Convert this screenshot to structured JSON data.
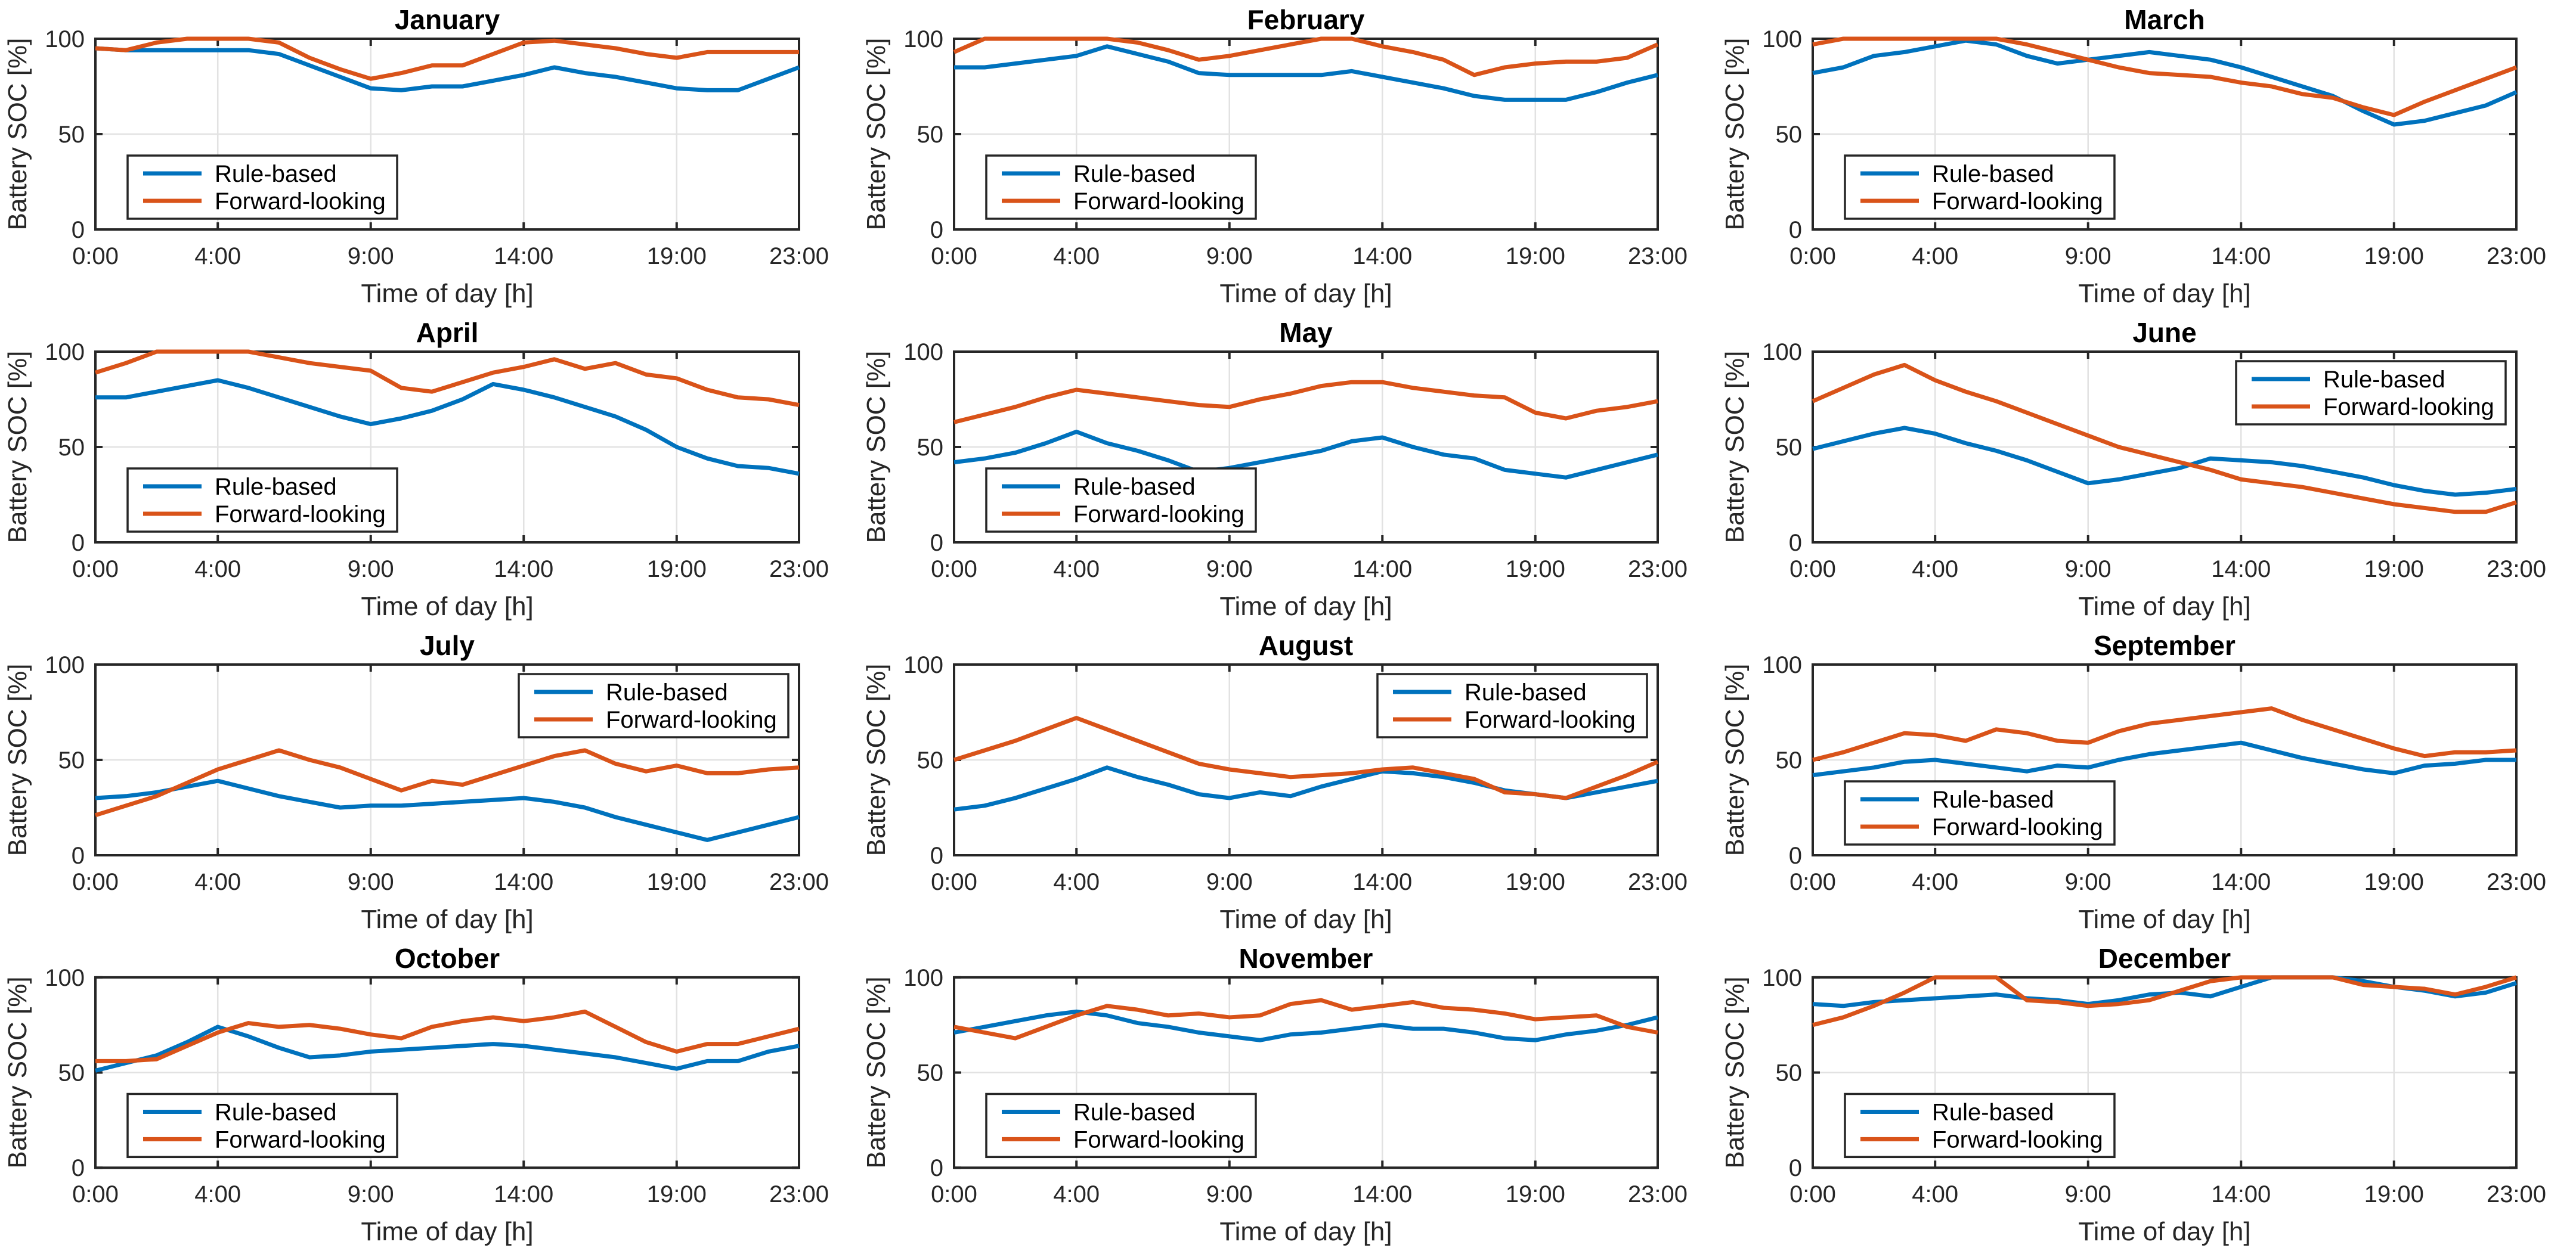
{
  "page": {
    "background": "#ffffff"
  },
  "colors": {
    "rule_based": "#0072BD",
    "forward_looking": "#D95319",
    "axis": "#262626",
    "grid": "#E2E2E2",
    "title_text": "#000000",
    "tick_text": "#262626",
    "legend_bg": "#ffffff"
  },
  "chart_defaults": {
    "type": "line",
    "xlabel": "Time of day [h]",
    "ylabel": "Battery SOC [%]",
    "xlim": [
      0,
      23
    ],
    "ylim": [
      0,
      100
    ],
    "grid": true,
    "x_hours": [
      0,
      1,
      2,
      3,
      4,
      5,
      6,
      7,
      8,
      9,
      10,
      11,
      12,
      13,
      14,
      15,
      16,
      17,
      18,
      19,
      20,
      21,
      22,
      23
    ],
    "x_ticks": [
      0,
      4,
      9,
      14,
      19,
      23
    ],
    "x_tick_labels": [
      "0:00",
      "4:00",
      "9:00",
      "14:00",
      "19:00",
      "23:00"
    ],
    "y_ticks": [
      0,
      50,
      100
    ],
    "y_tick_labels": [
      "0",
      "50",
      "100"
    ],
    "legend_labels": [
      "Rule-based",
      "Forward-looking"
    ]
  },
  "chart_data": [
    {
      "type": "line",
      "title": "January",
      "legend_pos": "southwest",
      "series": [
        {
          "name": "Rule-based",
          "values": [
            95,
            94,
            94,
            94,
            94,
            94,
            92,
            86,
            80,
            74,
            73,
            75,
            75,
            78,
            81,
            85,
            82,
            80,
            77,
            74,
            73,
            73,
            79,
            85
          ]
        },
        {
          "name": "Forward-looking",
          "values": [
            95,
            94,
            98,
            100,
            100,
            100,
            98,
            90,
            84,
            79,
            82,
            86,
            86,
            92,
            98,
            99,
            97,
            95,
            92,
            90,
            93,
            93,
            93,
            93
          ]
        }
      ]
    },
    {
      "type": "line",
      "title": "February",
      "legend_pos": "southwest",
      "series": [
        {
          "name": "Rule-based",
          "values": [
            85,
            85,
            87,
            89,
            91,
            96,
            92,
            88,
            82,
            81,
            81,
            81,
            81,
            83,
            80,
            77,
            74,
            70,
            68,
            68,
            68,
            72,
            77,
            81
          ]
        },
        {
          "name": "Forward-looking",
          "values": [
            93,
            100,
            100,
            100,
            100,
            100,
            98,
            94,
            89,
            91,
            94,
            97,
            100,
            100,
            96,
            93,
            89,
            81,
            85,
            87,
            88,
            88,
            90,
            97
          ]
        }
      ]
    },
    {
      "type": "line",
      "title": "March",
      "legend_pos": "southwest",
      "series": [
        {
          "name": "Rule-based",
          "values": [
            82,
            85,
            91,
            93,
            96,
            99,
            97,
            91,
            87,
            89,
            91,
            93,
            91,
            89,
            85,
            80,
            75,
            70,
            62,
            55,
            57,
            61,
            65,
            72
          ]
        },
        {
          "name": "Forward-looking",
          "values": [
            97,
            100,
            100,
            100,
            100,
            100,
            100,
            97,
            93,
            89,
            85,
            82,
            81,
            80,
            77,
            75,
            71,
            69,
            64,
            60,
            67,
            73,
            79,
            85
          ]
        }
      ]
    },
    {
      "type": "line",
      "title": "April",
      "legend_pos": "southwest",
      "series": [
        {
          "name": "Rule-based",
          "values": [
            76,
            76,
            79,
            82,
            85,
            81,
            76,
            71,
            66,
            62,
            65,
            69,
            75,
            83,
            80,
            76,
            71,
            66,
            59,
            50,
            44,
            40,
            39,
            36
          ]
        },
        {
          "name": "Forward-looking",
          "values": [
            89,
            94,
            100,
            100,
            100,
            100,
            97,
            94,
            92,
            90,
            81,
            79,
            84,
            89,
            92,
            96,
            91,
            94,
            88,
            86,
            80,
            76,
            75,
            72
          ]
        }
      ]
    },
    {
      "type": "line",
      "title": "May",
      "legend_pos": "southwest",
      "series": [
        {
          "name": "Rule-based",
          "values": [
            42,
            44,
            47,
            52,
            58,
            52,
            48,
            43,
            37,
            39,
            42,
            45,
            48,
            53,
            55,
            50,
            46,
            44,
            38,
            36,
            34,
            38,
            42,
            46
          ]
        },
        {
          "name": "Forward-looking",
          "values": [
            63,
            67,
            71,
            76,
            80,
            78,
            76,
            74,
            72,
            71,
            75,
            78,
            82,
            84,
            84,
            81,
            79,
            77,
            76,
            68,
            65,
            69,
            71,
            74
          ]
        }
      ]
    },
    {
      "type": "line",
      "title": "June",
      "legend_pos": "northeast",
      "series": [
        {
          "name": "Rule-based",
          "values": [
            49,
            53,
            57,
            60,
            57,
            52,
            48,
            43,
            37,
            31,
            33,
            36,
            39,
            44,
            43,
            42,
            40,
            37,
            34,
            30,
            27,
            25,
            26,
            28
          ]
        },
        {
          "name": "Forward-looking",
          "values": [
            74,
            81,
            88,
            93,
            85,
            79,
            74,
            68,
            62,
            56,
            50,
            46,
            42,
            38,
            33,
            31,
            29,
            26,
            23,
            20,
            18,
            16,
            16,
            21
          ]
        }
      ]
    },
    {
      "type": "line",
      "title": "July",
      "legend_pos": "northeast",
      "series": [
        {
          "name": "Rule-based",
          "values": [
            30,
            31,
            33,
            36,
            39,
            35,
            31,
            28,
            25,
            26,
            26,
            27,
            28,
            29,
            30,
            28,
            25,
            20,
            16,
            12,
            8,
            12,
            16,
            20
          ]
        },
        {
          "name": "Forward-looking",
          "values": [
            21,
            26,
            31,
            38,
            45,
            50,
            55,
            50,
            46,
            40,
            34,
            39,
            37,
            42,
            47,
            52,
            55,
            48,
            44,
            47,
            43,
            43,
            45,
            46
          ]
        }
      ]
    },
    {
      "type": "line",
      "title": "August",
      "legend_pos": "northeast",
      "series": [
        {
          "name": "Rule-based",
          "values": [
            24,
            26,
            30,
            35,
            40,
            46,
            41,
            37,
            32,
            30,
            33,
            31,
            36,
            40,
            44,
            43,
            41,
            38,
            34,
            32,
            30,
            33,
            36,
            39
          ]
        },
        {
          "name": "Forward-looking",
          "values": [
            50,
            55,
            60,
            66,
            72,
            66,
            60,
            54,
            48,
            45,
            43,
            41,
            42,
            43,
            45,
            46,
            43,
            40,
            33,
            32,
            30,
            36,
            42,
            49
          ]
        }
      ]
    },
    {
      "type": "line",
      "title": "September",
      "legend_pos": "southwest",
      "series": [
        {
          "name": "Rule-based",
          "values": [
            42,
            44,
            46,
            49,
            50,
            48,
            46,
            44,
            47,
            46,
            50,
            53,
            55,
            57,
            59,
            55,
            51,
            48,
            45,
            43,
            47,
            48,
            50,
            50
          ]
        },
        {
          "name": "Forward-looking",
          "values": [
            50,
            54,
            59,
            64,
            63,
            60,
            66,
            64,
            60,
            59,
            65,
            69,
            71,
            73,
            75,
            77,
            71,
            66,
            61,
            56,
            52,
            54,
            54,
            55
          ]
        }
      ]
    },
    {
      "type": "line",
      "title": "October",
      "legend_pos": "southwest",
      "series": [
        {
          "name": "Rule-based",
          "values": [
            51,
            55,
            59,
            66,
            74,
            69,
            63,
            58,
            59,
            61,
            62,
            63,
            64,
            65,
            64,
            62,
            60,
            58,
            55,
            52,
            56,
            56,
            61,
            64
          ]
        },
        {
          "name": "Forward-looking",
          "values": [
            56,
            56,
            57,
            64,
            71,
            76,
            74,
            75,
            73,
            70,
            68,
            74,
            77,
            79,
            77,
            79,
            82,
            74,
            66,
            61,
            65,
            65,
            69,
            73
          ]
        }
      ]
    },
    {
      "type": "line",
      "title": "November",
      "legend_pos": "southwest",
      "series": [
        {
          "name": "Rule-based",
          "values": [
            71,
            74,
            77,
            80,
            82,
            80,
            76,
            74,
            71,
            69,
            67,
            70,
            71,
            73,
            75,
            73,
            73,
            71,
            68,
            67,
            70,
            72,
            75,
            79
          ]
        },
        {
          "name": "Forward-looking",
          "values": [
            74,
            71,
            68,
            74,
            80,
            85,
            83,
            80,
            81,
            79,
            80,
            86,
            88,
            83,
            85,
            87,
            84,
            83,
            81,
            78,
            79,
            80,
            74,
            71
          ]
        }
      ]
    },
    {
      "type": "line",
      "title": "December",
      "legend_pos": "southwest",
      "series": [
        {
          "name": "Rule-based",
          "values": [
            86,
            85,
            87,
            88,
            89,
            90,
            91,
            89,
            88,
            86,
            88,
            91,
            92,
            90,
            95,
            100,
            100,
            100,
            98,
            95,
            93,
            90,
            92,
            97
          ]
        },
        {
          "name": "Forward-looking",
          "values": [
            75,
            79,
            85,
            92,
            100,
            100,
            100,
            88,
            87,
            85,
            86,
            88,
            93,
            98,
            100,
            100,
            100,
            100,
            96,
            95,
            94,
            91,
            95,
            100
          ]
        }
      ]
    }
  ]
}
